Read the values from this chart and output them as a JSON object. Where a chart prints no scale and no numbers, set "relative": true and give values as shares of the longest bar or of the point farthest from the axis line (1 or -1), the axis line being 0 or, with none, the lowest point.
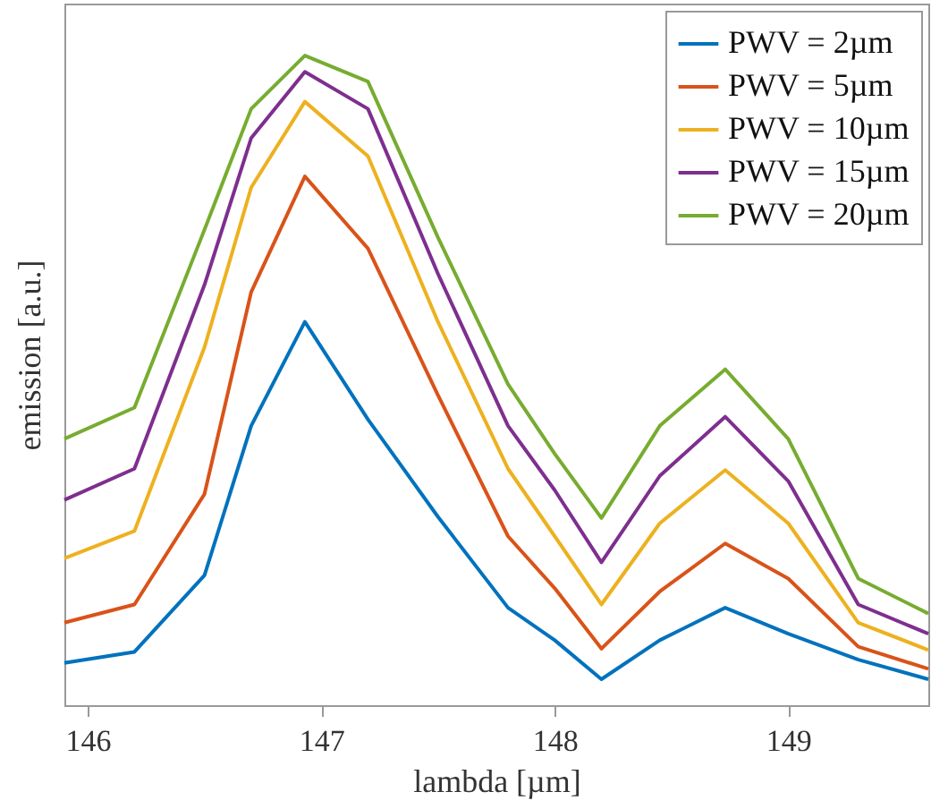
{
  "chart_data": {
    "type": "line",
    "xlabel": "lambda [µm]",
    "ylabel": "emission [a.u.]",
    "relative": true,
    "x": [
      145.9,
      146.2,
      146.5,
      146.7,
      146.93,
      147.2,
      147.5,
      147.8,
      148.0,
      148.2,
      148.45,
      148.73,
      149.0,
      149.3,
      149.6
    ],
    "xlim": [
      145.9,
      149.6
    ],
    "xticks": [
      146,
      147,
      148,
      149
    ],
    "legend": "top right",
    "grid": false,
    "marker": "none",
    "line_style": "solid",
    "series": [
      {
        "name": "PWV = 2µm",
        "color": "#0072bd",
        "values": [
          0.065,
          0.082,
          0.2,
          0.43,
          0.59,
          0.44,
          0.29,
          0.15,
          0.1,
          0.04,
          0.1,
          0.15,
          0.11,
          0.07,
          0.04
        ]
      },
      {
        "name": "PWV = 5µm",
        "color": "#d95319",
        "values": [
          0.127,
          0.155,
          0.325,
          0.636,
          0.814,
          0.703,
          0.477,
          0.26,
          0.18,
          0.087,
          0.175,
          0.249,
          0.195,
          0.09,
          0.056
        ]
      },
      {
        "name": "PWV = 10µm",
        "color": "#edb120",
        "values": [
          0.226,
          0.268,
          0.551,
          0.797,
          0.929,
          0.845,
          0.59,
          0.364,
          0.26,
          0.155,
          0.28,
          0.362,
          0.28,
          0.127,
          0.085
        ]
      },
      {
        "name": "PWV = 15µm",
        "color": "#7e2f8e",
        "values": [
          0.316,
          0.364,
          0.647,
          0.873,
          0.975,
          0.918,
          0.664,
          0.43,
          0.331,
          0.22,
          0.353,
          0.444,
          0.345,
          0.155,
          0.11
        ]
      },
      {
        "name": "PWV = 20µm",
        "color": "#77ac30",
        "values": [
          0.41,
          0.458,
          0.732,
          0.918,
          1,
          0.96,
          0.72,
          0.494,
          0.387,
          0.288,
          0.43,
          0.517,
          0.41,
          0.195,
          0.141
        ]
      }
    ]
  }
}
